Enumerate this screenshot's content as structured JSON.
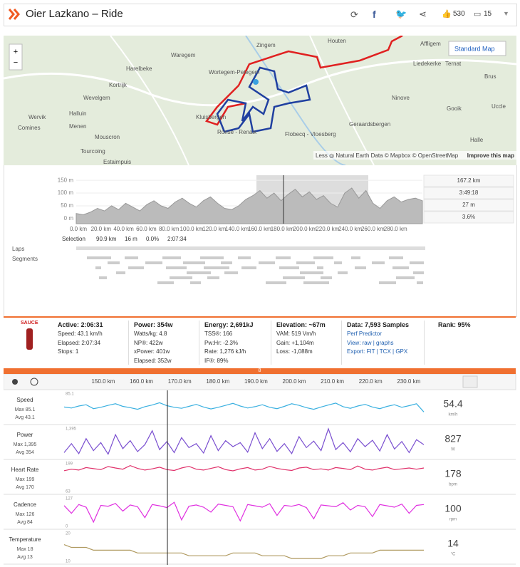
{
  "header": {
    "title": "Oier Lazkano – Ride",
    "kudos": "530",
    "comments": "15"
  },
  "map": {
    "button": "Standard Map",
    "attribution": "Less ◎ Natural Earth Data © Mapbox © OpenStreetMap",
    "improve": "Improve this map",
    "places": [
      "Houten",
      "Affligem",
      "Zingem",
      "Waregem",
      "Harelbeke",
      "Kortrijk",
      "Wortegem-Petegem",
      "Liedekerke",
      "Ternat",
      "Brus",
      "Wevelgem",
      "Ninove",
      "Wervik",
      "Halluin",
      "Comines",
      "Menen",
      "Gooik",
      "Uccle",
      "Mouscron",
      "Kluisbergen",
      "Ronse - Renaix",
      "Geraardsbergen",
      "Flobecq - Vloesberg",
      "Tourcoing",
      "Halle",
      "Estaimpuis"
    ]
  },
  "elevation": {
    "yticks": [
      {
        "value": 150,
        "label": "150 m"
      },
      {
        "value": 100,
        "label": "100 m"
      },
      {
        "value": 50,
        "label": "50 m"
      },
      {
        "value": 0,
        "label": "0 m"
      }
    ],
    "ylim": [
      -20,
      170
    ],
    "xticks": [
      "0.0 km",
      "20.0 km",
      "40.0 km",
      "60.0 km",
      "80.0 km",
      "100.0 km",
      "120.0 km",
      "140.0 km",
      "160.0 km",
      "180.0 km",
      "200.0 km",
      "220.0 km",
      "240.0 km",
      "260.0 km",
      "280.0 km"
    ],
    "stats": [
      "167.2 km",
      "3:49:18",
      "27 m",
      "3.6%"
    ],
    "profile": [
      20,
      15,
      25,
      40,
      30,
      50,
      35,
      60,
      45,
      30,
      55,
      70,
      50,
      40,
      65,
      80,
      60,
      45,
      70,
      85,
      60,
      40,
      35,
      50,
      75,
      90,
      110,
      80,
      100,
      70,
      95,
      115,
      85,
      105,
      75,
      90,
      60,
      45,
      100,
      120,
      80,
      110,
      60,
      40,
      70,
      85,
      65,
      75,
      80,
      70
    ],
    "selection": {
      "label": "Selection",
      "values": [
        "90.9 km",
        "16 m",
        "0.0%",
        "2:07:34"
      ]
    },
    "laps": "Laps",
    "segments": "Segments"
  },
  "sauce": {
    "logo": "SAUCE",
    "columns": [
      {
        "head": "Active: 2:06:31",
        "items": [
          "Speed: 43.1 km/h",
          "Elapsed: 2:07:34",
          "Stops: 1"
        ]
      },
      {
        "head": "Power: 354w",
        "items": [
          "Watts/kg: 4.8",
          "NP®: 422w",
          "xPower: 401w",
          "Elapsed: 352w"
        ]
      },
      {
        "head": "Energy: 2,691kJ",
        "items": [
          "TSS®: 166",
          "Pw:Hr: -2.3%",
          "Rate: 1,276 kJ/h",
          "IF®: 89%"
        ]
      },
      {
        "head": "Elevation: ~67m",
        "items": [
          "VAM: 519 Vm/h",
          "Gain: +1,104m",
          "Loss: -1,088m"
        ]
      },
      {
        "head": "Data: 7,593 Samples",
        "items": [
          "Perf Predictor",
          "View: raw | graphs",
          "Export: FIT | TCX | GPX"
        ]
      }
    ],
    "rank": "Rank: 95%"
  },
  "streams": {
    "xticks": [
      "150.0 km",
      "160.0 km",
      "170.0 km",
      "180.0 km",
      "190.0 km",
      "200.0 km",
      "210.0 km",
      "220.0 km",
      "230.0 km"
    ],
    "marker": "8",
    "rows": [
      {
        "name": "Speed",
        "max": "Max 85.1",
        "avg": "Avg 43.1",
        "value": "54.4",
        "unit": "km/h",
        "color": "#3ab0e0",
        "ylim": [
          0,
          85.1
        ],
        "yticks": [
          85.1
        ],
        "samples": [
          45,
          42,
          48,
          52,
          40,
          44,
          50,
          55,
          47,
          43,
          38,
          46,
          51,
          58,
          49,
          44,
          41,
          47,
          53,
          45,
          39,
          44,
          50,
          56,
          48,
          42,
          46,
          52,
          44,
          40,
          47,
          55,
          50,
          43,
          38,
          45,
          51,
          57,
          46,
          41,
          48,
          53,
          45,
          40,
          47,
          52,
          44,
          49,
          55,
          30
        ]
      },
      {
        "name": "Power",
        "max": "Max 1,395",
        "avg": "Avg 354",
        "value": "827",
        "unit": "W",
        "color": "#7a4fd0",
        "ylim": [
          0,
          1395
        ],
        "yticks": [
          {
            "value": 1395,
            "label": "1,395"
          }
        ],
        "samples": [
          200,
          650,
          150,
          900,
          300,
          700,
          120,
          1100,
          400,
          800,
          250,
          600,
          1300,
          350,
          750,
          200,
          950,
          450,
          650,
          180,
          1050,
          300,
          800,
          500,
          700,
          220,
          1200,
          400,
          900,
          260,
          650,
          150,
          1000,
          450,
          780,
          300,
          1395,
          350,
          700,
          240,
          900,
          500,
          820,
          280,
          1100,
          380,
          760,
          200,
          850,
          600
        ]
      },
      {
        "name": "Heart Rate",
        "max": "Max 199",
        "avg": "Avg 170",
        "value": "178",
        "unit": "bpm",
        "color": "#e0306a",
        "ylim": [
          63,
          199
        ],
        "yticks": [
          199,
          63
        ],
        "samples": [
          165,
          172,
          168,
          180,
          175,
          170,
          185,
          178,
          172,
          190,
          176,
          168,
          174,
          182,
          170,
          166,
          178,
          186,
          172,
          168,
          176,
          184,
          170,
          164,
          174,
          180,
          168,
          172,
          186,
          176,
          170,
          166,
          178,
          182,
          170,
          174,
          168,
          180,
          176,
          170,
          188,
          172,
          168,
          176,
          182,
          170,
          174,
          178,
          172,
          178
        ]
      },
      {
        "name": "Cadence",
        "max": "Max 126",
        "avg": "Avg 84",
        "value": "100",
        "unit": "rpm",
        "color": "#e030e0",
        "ylim": [
          0,
          127
        ],
        "yticks": [
          127,
          0
        ],
        "samples": [
          95,
          60,
          100,
          88,
          20,
          96,
          92,
          105,
          70,
          98,
          90,
          40,
          100,
          94,
          86,
          110,
          30,
          92,
          98,
          88,
          65,
          102,
          96,
          90,
          25,
          100,
          94,
          88,
          104,
          50,
          96,
          92,
          100,
          86,
          35,
          98,
          94,
          90,
          108,
          75,
          96,
          90,
          45,
          100,
          94,
          88,
          102,
          60,
          96,
          100
        ]
      },
      {
        "name": "Temperature",
        "max": "Max 18",
        "avg": "Avg 13",
        "value": "14",
        "unit": "°C",
        "color": "#b09a60",
        "ylim": [
          10,
          20
        ],
        "yticks": [
          20,
          10
        ],
        "samples": [
          16,
          15,
          15,
          15,
          14,
          14,
          14,
          14,
          14,
          14,
          13,
          13,
          13,
          13,
          13,
          13,
          13,
          12,
          12,
          12,
          12,
          12,
          12,
          13,
          13,
          13,
          13,
          12,
          12,
          12,
          12,
          11,
          11,
          11,
          11,
          11,
          12,
          12,
          12,
          13,
          13,
          13,
          13,
          14,
          14,
          14,
          14,
          14,
          14,
          14
        ]
      }
    ]
  }
}
